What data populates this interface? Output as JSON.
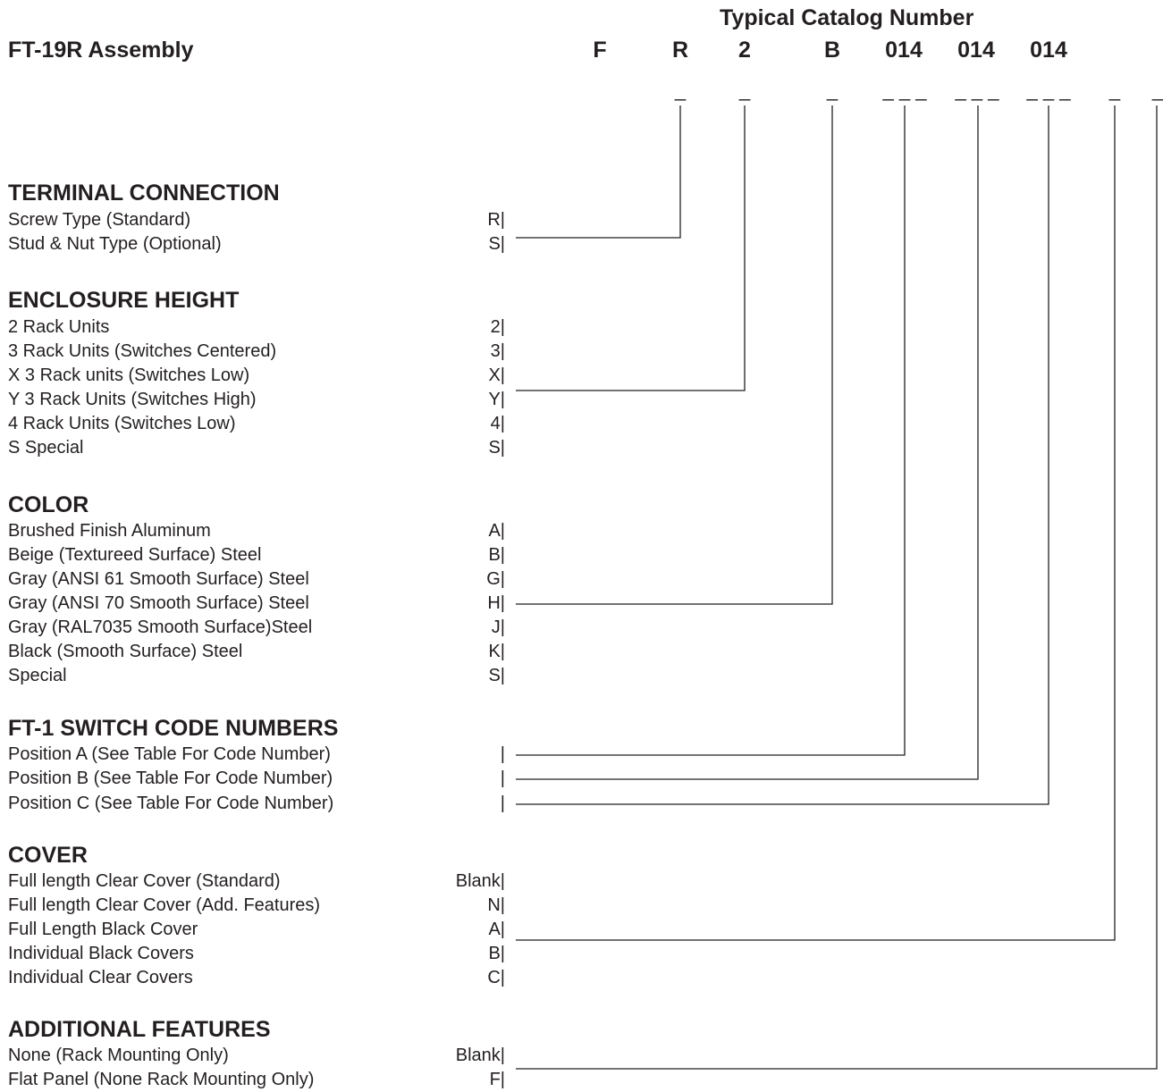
{
  "header": {
    "title": "FT-19R Assembly",
    "catalog_heading": "Typical Catalog Number",
    "catalog_segments": [
      "F",
      "R",
      "2",
      "B",
      "014",
      "014",
      "014"
    ],
    "blanks": [
      "_",
      "_",
      "_",
      "_ _ _",
      "_ _ _",
      "_ _ _",
      "_",
      "_"
    ]
  },
  "sections": [
    {
      "title": "TERMINAL CONNECTION",
      "options": [
        {
          "label": "Screw Type (Standard)",
          "code": "R|"
        },
        {
          "label": "Stud & Nut Type (Optional)",
          "code": "S|"
        }
      ]
    },
    {
      "title": "ENCLOSURE HEIGHT",
      "options": [
        {
          "label": "2 Rack Units",
          "code": "2|"
        },
        {
          "label": "3 Rack Units (Switches Centered)",
          "code": "3|"
        },
        {
          "label": "X 3 Rack units (Switches Low)",
          "code": "X|"
        },
        {
          "label": "Y 3 Rack Units (Switches High)",
          "code": "Y|"
        },
        {
          "label": "4 Rack Units (Switches Low)",
          "code": "4|"
        },
        {
          "label": "S Special",
          "code": "S|"
        }
      ]
    },
    {
      "title": "COLOR",
      "options": [
        {
          "label": "Brushed Finish Aluminum",
          "code": "A|"
        },
        {
          "label": "Beige (Textureed Surface) Steel",
          "code": "B|"
        },
        {
          "label": "Gray (ANSI 61 Smooth Surface) Steel",
          "code": "G|"
        },
        {
          "label": "Gray (ANSI 70 Smooth Surface) Steel",
          "code": "H|"
        },
        {
          "label": "Gray (RAL7035 Smooth Surface)Steel",
          "code": "J|"
        },
        {
          "label": "Black (Smooth Surface) Steel",
          "code": "K|"
        },
        {
          "label": "Special",
          "code": "S|"
        }
      ]
    },
    {
      "title": "FT-1 SWITCH CODE NUMBERS",
      "options": [
        {
          "label": "Position A (See Table For Code Number)",
          "code": "|"
        },
        {
          "label": "Position B (See Table For Code Number)",
          "code": "|"
        },
        {
          "label": "Position C (See Table For Code Number)",
          "code": "|"
        }
      ]
    },
    {
      "title": "COVER",
      "options": [
        {
          "label": "Full length Clear Cover (Standard)",
          "code": "Blank|"
        },
        {
          "label": "Full length Clear Cover (Add. Features)",
          "code": "N|"
        },
        {
          "label": "Full Length Black Cover",
          "code": "A|"
        },
        {
          "label": "Individual Black Covers",
          "code": "B|"
        },
        {
          "label": "Individual Clear Covers",
          "code": "C|"
        }
      ]
    },
    {
      "title": "ADDITIONAL FEATURES",
      "options": [
        {
          "label": "None (Rack Mounting Only)",
          "code": "Blank|"
        },
        {
          "label": "Flat Panel (None Rack Mounting Only)",
          "code": "F|"
        }
      ]
    }
  ]
}
